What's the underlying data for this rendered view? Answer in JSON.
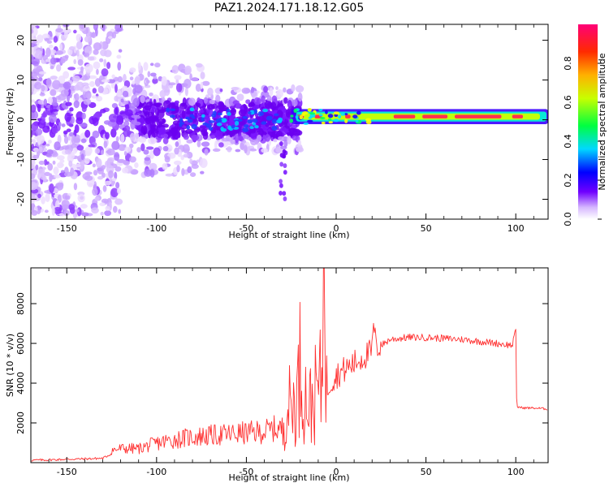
{
  "title": "PAZ1.2024.171.18.12.G05",
  "colors": {
    "signal": "#ff3030",
    "band_core": "#ff3050",
    "scatter": "#6f00ff"
  },
  "chart_data": [
    {
      "type": "heatmap",
      "name": "spectrogram",
      "xlabel": "Height of straight line (km)",
      "ylabel": "Frequency (Hz)",
      "xlim": [
        -170,
        118
      ],
      "ylim": [
        -25,
        24
      ],
      "xticks": [
        -150,
        -100,
        -50,
        0,
        50,
        100
      ],
      "xtick_labels": [
        "-150",
        "-100",
        "-50",
        "0",
        "50",
        "100"
      ],
      "yticks": [
        -20,
        -10,
        0,
        10,
        20
      ],
      "ytick_labels": [
        "-20",
        "-10",
        "0",
        "10",
        "20"
      ],
      "colorbar": {
        "label": "Normalized spectral amplitude",
        "range": [
          0,
          1
        ],
        "ticks": [
          0.0,
          0.2,
          0.4,
          0.6,
          0.8
        ],
        "tick_labels": [
          "0.0",
          "0.2",
          "0.4",
          "0.6",
          "0.8"
        ],
        "colormap": "gist_rainbow_r"
      },
      "features": {
        "coherent_band": {
          "x_range": [
            -25,
            118
          ],
          "frequency_center": 0.8,
          "frequency_halfwidth": 1.0
        },
        "scatter_region": {
          "x_range": [
            -170,
            -20
          ],
          "frequency_range": [
            -25,
            24
          ]
        }
      },
      "grid": false
    },
    {
      "type": "line",
      "name": "snr",
      "xlabel": "Height of straight line (km)",
      "ylabel": "SNR (10 * v/v)",
      "xlim": [
        -170,
        118
      ],
      "ylim": [
        0,
        9800
      ],
      "xticks": [
        -150,
        -100,
        -50,
        0,
        50,
        100
      ],
      "xtick_labels": [
        "-150",
        "-100",
        "-50",
        "0",
        "50",
        "100"
      ],
      "yticks": [
        2000,
        4000,
        6000,
        8000
      ],
      "ytick_labels": [
        "2000",
        "4000",
        "6000",
        "8000"
      ],
      "series": [
        {
          "color": "#ff3030",
          "x": [
            -170,
            -160,
            -150,
            -140,
            -130,
            -125,
            -120,
            -110,
            -100,
            -90,
            -80,
            -70,
            -60,
            -50,
            -40,
            -35,
            -30,
            -28,
            -25,
            -22,
            -20,
            -18,
            -15,
            -12,
            -10,
            -8,
            -7,
            -6,
            -5,
            -3,
            0,
            5,
            10,
            15,
            20,
            21,
            22,
            25,
            30,
            40,
            50,
            60,
            70,
            80,
            90,
            98,
            100,
            100.5,
            101,
            105,
            110,
            118
          ],
          "y": [
            120,
            140,
            170,
            190,
            220,
            450,
            520,
            520,
            720,
            850,
            950,
            1000,
            1050,
            1100,
            1150,
            1250,
            1250,
            3000,
            2800,
            3200,
            5000,
            3600,
            2800,
            3300,
            3800,
            3900,
            9800,
            2500,
            3700,
            4100,
            4400,
            4700,
            5000,
            5300,
            5600,
            7100,
            5800,
            5900,
            6200,
            6300,
            6300,
            6250,
            6200,
            6100,
            6000,
            5900,
            6600,
            2900,
            2800,
            2750,
            2750,
            2700
          ]
        }
      ],
      "grid": false
    }
  ]
}
